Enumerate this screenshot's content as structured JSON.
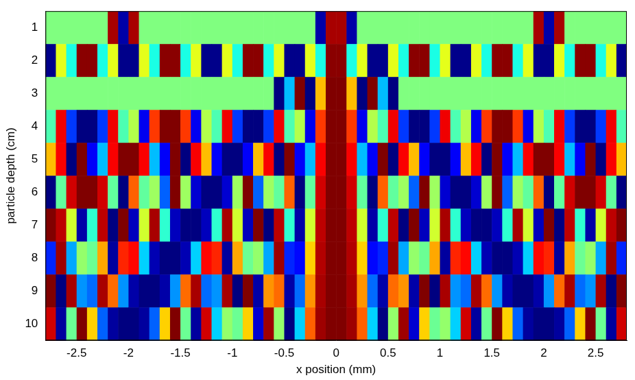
{
  "chart_data": {
    "type": "heatmap",
    "xlabel": "x position (mm)",
    "ylabel": "particle depth (cm)",
    "xlim": [
      -2.8,
      2.8
    ],
    "xticks": [
      -2.5,
      -2,
      -1.5,
      -1,
      -0.5,
      0,
      0.5,
      1,
      1.5,
      2,
      2.5
    ],
    "ylim": [
      0.5,
      10.5
    ],
    "yticks": [
      1,
      2,
      3,
      4,
      5,
      6,
      7,
      8,
      9,
      10
    ],
    "grid": false,
    "zlim": [
      0,
      1
    ],
    "x": [
      -2.75,
      -2.65,
      -2.55,
      -2.45,
      -2.35,
      -2.25,
      -2.15,
      -2.05,
      -1.95,
      -1.85,
      -1.75,
      -1.65,
      -1.55,
      -1.45,
      -1.35,
      -1.25,
      -1.15,
      -1.05,
      -0.95,
      -0.85,
      -0.75,
      -0.65,
      -0.55,
      -0.45,
      -0.35,
      -0.25,
      -0.15,
      -0.05,
      0.05,
      0.15,
      0.25,
      0.35,
      0.45,
      0.55,
      0.65,
      0.75,
      0.85,
      0.95,
      1.05,
      1.15,
      1.25,
      1.35,
      1.45,
      1.55,
      1.65,
      1.75,
      1.85,
      1.95,
      2.05,
      2.15,
      2.25,
      2.35,
      2.45,
      2.55,
      2.65,
      2.75
    ],
    "y": [
      1,
      2,
      3,
      4,
      5,
      6,
      7,
      8,
      9,
      10
    ],
    "cells": [
      [
        0.5,
        0.5,
        0.5,
        0.5,
        0.5,
        0.5,
        0.96,
        0.04,
        0.96,
        0.5,
        0.5,
        0.5,
        0.5,
        0.5,
        0.5,
        0.5,
        0.5,
        0.5,
        0.5,
        0.5,
        0.5,
        0.5,
        0.5,
        0.5,
        0.5,
        0.5,
        0.04,
        0.96,
        0.96,
        0.04,
        0.5,
        0.5,
        0.5,
        0.5,
        0.5,
        0.5,
        0.5,
        0.5,
        0.5,
        0.5,
        0.5,
        0.5,
        0.5,
        0.5,
        0.5,
        0.5,
        0.5,
        0.96,
        0.04,
        0.96,
        0.5,
        0.5,
        0.5,
        0.5,
        0.5,
        0.5
      ],
      [
        0.01,
        0.6,
        0.4,
        0.99,
        0.99,
        0.4,
        0.6,
        0.01,
        0.01,
        0.6,
        0.4,
        0.99,
        0.99,
        0.4,
        0.6,
        0.01,
        0.01,
        0.6,
        0.4,
        0.99,
        0.99,
        0.4,
        0.6,
        0.01,
        0.01,
        0.6,
        0.4,
        0.99,
        0.99,
        0.4,
        0.6,
        0.01,
        0.01,
        0.6,
        0.4,
        0.99,
        0.99,
        0.4,
        0.6,
        0.01,
        0.01,
        0.6,
        0.4,
        0.99,
        0.99,
        0.4,
        0.6,
        0.01,
        0.01,
        0.6,
        0.4,
        0.99,
        0.99,
        0.4,
        0.6,
        0.01
      ],
      [
        0.5,
        0.5,
        0.5,
        0.5,
        0.5,
        0.5,
        0.5,
        0.5,
        0.5,
        0.5,
        0.5,
        0.5,
        0.5,
        0.5,
        0.5,
        0.5,
        0.5,
        0.5,
        0.5,
        0.5,
        0.5,
        0.5,
        0,
        0.31,
        1,
        0,
        0.69,
        1,
        1,
        0.69,
        0,
        1,
        0.31,
        0,
        0.5,
        0.5,
        0.5,
        0.5,
        0.5,
        0.5,
        0.5,
        0.5,
        0.5,
        0.5,
        0.5,
        0.5,
        0.5,
        0.5,
        0.5,
        0.5,
        0.5,
        0.5,
        0.5,
        0.5,
        0.5,
        0.5
      ],
      [
        0.45,
        0.89,
        0.18,
        0,
        0,
        0.18,
        0.89,
        0.45,
        0.55,
        0.11,
        0.82,
        1,
        1,
        0.82,
        0.11,
        0.55,
        0.45,
        0.89,
        0.18,
        0,
        0,
        0.18,
        0.89,
        0.45,
        0.55,
        0.11,
        0.82,
        1,
        1,
        0.82,
        0.11,
        0.55,
        0.45,
        0.89,
        0.18,
        0,
        0,
        0.18,
        0.89,
        0.45,
        0.55,
        0.11,
        0.82,
        1,
        1,
        0.82,
        0.11,
        0.55,
        0.45,
        0.89,
        0.18,
        0,
        0,
        0.18,
        0.89,
        0.45
      ],
      [
        0.69,
        0.88,
        0,
        1,
        0.12,
        0.31,
        0.88,
        1,
        1,
        0.88,
        0.31,
        0.12,
        1,
        0,
        0.88,
        0.69,
        0.12,
        0,
        0,
        0.12,
        0.69,
        0.88,
        0,
        1,
        0.12,
        0.31,
        0.88,
        1,
        1,
        0.88,
        0.31,
        0.12,
        1,
        0,
        0.88,
        0.69,
        0.12,
        0,
        0,
        0.12,
        0.69,
        0.88,
        0,
        1,
        0.12,
        0.31,
        0.88,
        1,
        1,
        0.88,
        0.31,
        0.12,
        1,
        0,
        0.88,
        0.69
      ],
      [
        0,
        0.47,
        0.92,
        1,
        1,
        0.92,
        0.47,
        0,
        0.78,
        0.47,
        0.53,
        0.22,
        1,
        0.53,
        0.08,
        0,
        0,
        0.08,
        0.53,
        1,
        0.22,
        0.53,
        0.47,
        0.78,
        0,
        0.47,
        0.92,
        1,
        1,
        0.92,
        0.47,
        0,
        0.78,
        0.47,
        0.53,
        0.22,
        1,
        0.53,
        0.08,
        0,
        0,
        0.08,
        0.53,
        1,
        0.22,
        0.53,
        0.47,
        0.78,
        0,
        0.47,
        0.92,
        1,
        1,
        0.92,
        0.47,
        0
      ],
      [
        1,
        0.94,
        0.58,
        0.04,
        0.42,
        0.94,
        0,
        1,
        0.06,
        0.58,
        0.96,
        0.42,
        0.06,
        0,
        0,
        0.06,
        0.42,
        0.96,
        0.58,
        0.06,
        1,
        0,
        0.94,
        0.42,
        0.04,
        0.58,
        0.94,
        1,
        1,
        0.94,
        0.58,
        0.04,
        0.42,
        0.94,
        0,
        1,
        0.06,
        0.58,
        0.96,
        0.42,
        0.06,
        0,
        0,
        0.06,
        0.42,
        0.96,
        0.58,
        0.06,
        1,
        0,
        0.94,
        0.42,
        0.04,
        0.58,
        0.94,
        1
      ],
      [
        0.16,
        0.97,
        0.29,
        0.52,
        0.48,
        0.71,
        0.03,
        0.84,
        0.87,
        0.33,
        0.05,
        0,
        0,
        0.05,
        0.33,
        0.87,
        0.84,
        0.03,
        0.71,
        0.48,
        0.52,
        0.29,
        0.97,
        0.16,
        0.13,
        0.67,
        0.95,
        1,
        1,
        0.95,
        0.67,
        0.13,
        0.16,
        0.97,
        0.29,
        0.52,
        0.48,
        0.71,
        0.03,
        0.84,
        0.87,
        0.33,
        0.05,
        0,
        0,
        0.05,
        0.33,
        0.87,
        0.84,
        0.03,
        0.71,
        0.48,
        0.52,
        0.29,
        0.97,
        0.16
      ],
      [
        1,
        0,
        0.96,
        0.27,
        0.23,
        0.96,
        0.77,
        0.27,
        0.04,
        0,
        0,
        0.04,
        0.27,
        0.77,
        0.96,
        0.23,
        0.27,
        0.96,
        0,
        1,
        0.04,
        0.73,
        0.77,
        0.04,
        0.23,
        0.73,
        0.96,
        1,
        1,
        0.96,
        0.73,
        0.23,
        0.04,
        0.77,
        0.73,
        0.04,
        1,
        0,
        0.96,
        0.27,
        0.23,
        0.96,
        0.77,
        0.27,
        0.04,
        0,
        0,
        0.04,
        0.27,
        0.77,
        0.96,
        0.23,
        0.27,
        0.96,
        0,
        1
      ],
      [
        0.92,
        0.03,
        0.48,
        1,
        0.67,
        0.22,
        0.03,
        0,
        0,
        0.03,
        0.22,
        0.67,
        1,
        0.48,
        0.03,
        0.92,
        0.33,
        0.52,
        0.48,
        0.67,
        0.08,
        0.97,
        0.52,
        0,
        0.33,
        0.78,
        0.97,
        1,
        1,
        0.97,
        0.78,
        0.33,
        0,
        0.52,
        0.97,
        0.08,
        0.67,
        0.48,
        0.52,
        0.33,
        0.92,
        0.03,
        0.48,
        1,
        0.67,
        0.22,
        0.03,
        0,
        0,
        0.03,
        0.22,
        0.67,
        1,
        0.48,
        0.03,
        0.92
      ]
    ]
  }
}
